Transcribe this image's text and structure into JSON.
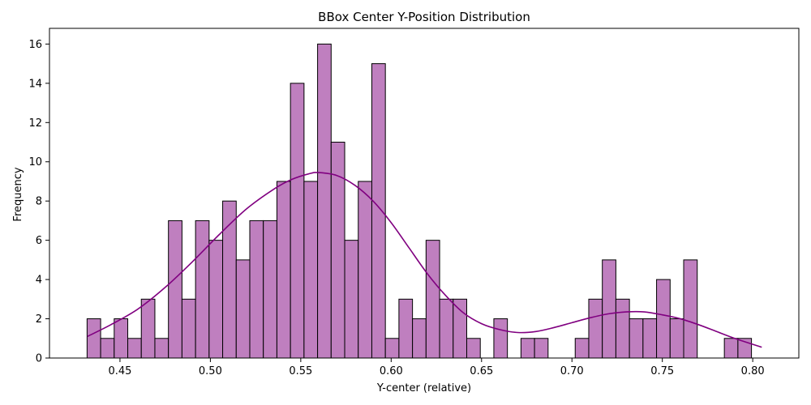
{
  "chart_data": {
    "type": "bar",
    "subtype": "histogram-with-kde",
    "title": "BBox Center Y-Position Distribution",
    "xlabel": "Y-center (relative)",
    "ylabel": "Frequency",
    "xlim": [
      0.411,
      0.8255
    ],
    "ylim": [
      0,
      16.8
    ],
    "xticks": [
      0.45,
      0.5,
      0.55,
      0.6,
      0.65,
      0.7,
      0.75,
      0.8
    ],
    "xtick_labels": [
      "0.45",
      "0.50",
      "0.55",
      "0.60",
      "0.65",
      "0.70",
      "0.75",
      "0.80"
    ],
    "yticks": [
      0,
      2,
      4,
      6,
      8,
      10,
      12,
      14,
      16
    ],
    "ytick_labels": [
      "0",
      "2",
      "4",
      "6",
      "8",
      "10",
      "12",
      "14",
      "16"
    ],
    "grid": false,
    "bin_start": 0.4318,
    "bin_width": 0.0075,
    "values": [
      2,
      1,
      2,
      1,
      3,
      1,
      7,
      3,
      7,
      6,
      8,
      5,
      7,
      7,
      9,
      14,
      9,
      16,
      11,
      6,
      9,
      15,
      1,
      3,
      2,
      6,
      3,
      3,
      1,
      0,
      2,
      0,
      1,
      1,
      0,
      0,
      1,
      3,
      5,
      3,
      2,
      2,
      4,
      2,
      5,
      0,
      0,
      1,
      1
    ],
    "kde_x": [
      0.432,
      0.445,
      0.46,
      0.475,
      0.49,
      0.505,
      0.52,
      0.535,
      0.545,
      0.555,
      0.56,
      0.57,
      0.58,
      0.59,
      0.6,
      0.61,
      0.62,
      0.63,
      0.64,
      0.65,
      0.66,
      0.67,
      0.68,
      0.69,
      0.7,
      0.71,
      0.72,
      0.73,
      0.74,
      0.75,
      0.76,
      0.77,
      0.78,
      0.79,
      0.805
    ],
    "kde_y": [
      1.1,
      1.7,
      2.5,
      3.6,
      4.9,
      6.3,
      7.6,
      8.6,
      9.1,
      9.4,
      9.45,
      9.3,
      8.8,
      8.0,
      6.9,
      5.6,
      4.3,
      3.2,
      2.3,
      1.75,
      1.45,
      1.3,
      1.35,
      1.55,
      1.8,
      2.05,
      2.25,
      2.35,
      2.35,
      2.2,
      2.0,
      1.7,
      1.35,
      1.0,
      0.55
    ],
    "colors": {
      "bar_fill": "#bf7fbf",
      "bar_edge": "#000000",
      "kde_line": "#800080"
    }
  }
}
